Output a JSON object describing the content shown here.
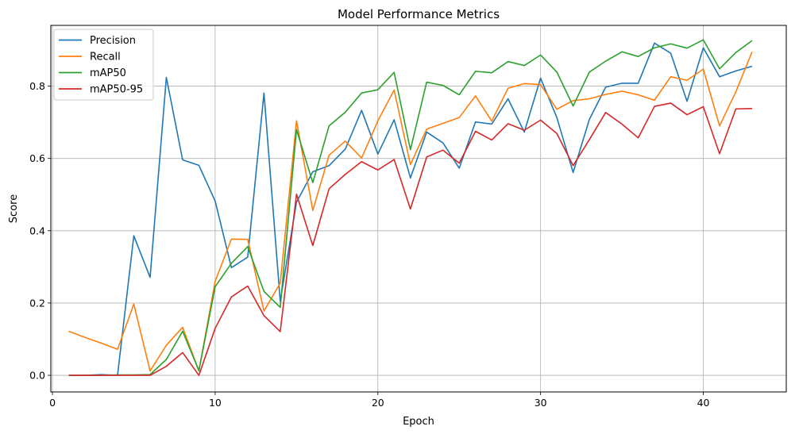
{
  "chart_data": {
    "type": "line",
    "title": "Model Performance Metrics",
    "xlabel": "Epoch",
    "ylabel": "Score",
    "xlim": [
      -0.1,
      45.1
    ],
    "ylim": [
      -0.046,
      0.968
    ],
    "xticks": [
      0,
      10,
      20,
      30,
      40
    ],
    "yticks": [
      0.0,
      0.2,
      0.4,
      0.6,
      0.8
    ],
    "grid": true,
    "legend_position": "top-left",
    "x": [
      1,
      2,
      3,
      4,
      5,
      6,
      7,
      8,
      9,
      10,
      11,
      12,
      13,
      14,
      15,
      16,
      17,
      18,
      19,
      20,
      21,
      22,
      23,
      24,
      25,
      26,
      27,
      28,
      29,
      30,
      31,
      32,
      33,
      34,
      35,
      36,
      37,
      38,
      39,
      40,
      41,
      42,
      43
    ],
    "series": [
      {
        "name": "Precision",
        "color": "#1f77b4",
        "values": [
          0.0,
          0.0,
          0.002,
          0.0,
          0.386,
          0.271,
          0.824,
          0.596,
          0.581,
          0.482,
          0.298,
          0.327,
          0.781,
          0.205,
          0.479,
          0.563,
          0.58,
          0.626,
          0.733,
          0.612,
          0.707,
          0.546,
          0.673,
          0.643,
          0.573,
          0.701,
          0.695,
          0.765,
          0.673,
          0.822,
          0.713,
          0.561,
          0.708,
          0.797,
          0.808,
          0.808,
          0.919,
          0.891,
          0.758,
          0.906,
          0.826,
          0.842,
          0.855
        ]
      },
      {
        "name": "Recall",
        "color": "#ff7f0e",
        "values": [
          0.122,
          0.105,
          0.089,
          0.072,
          0.197,
          0.012,
          0.083,
          0.133,
          0.012,
          0.26,
          0.377,
          0.376,
          0.178,
          0.255,
          0.704,
          0.456,
          0.609,
          0.648,
          0.601,
          0.704,
          0.789,
          0.583,
          0.681,
          0.697,
          0.713,
          0.773,
          0.703,
          0.794,
          0.807,
          0.804,
          0.736,
          0.76,
          0.765,
          0.777,
          0.786,
          0.776,
          0.761,
          0.826,
          0.816,
          0.847,
          0.69,
          0.784,
          0.895
        ]
      },
      {
        "name": "mAP50",
        "color": "#2ca02c",
        "values": [
          0.0,
          0.0,
          0.0,
          0.001,
          0.001,
          0.002,
          0.044,
          0.122,
          0.013,
          0.245,
          0.31,
          0.356,
          0.232,
          0.188,
          0.68,
          0.533,
          0.69,
          0.728,
          0.781,
          0.79,
          0.838,
          0.624,
          0.811,
          0.802,
          0.776,
          0.841,
          0.837,
          0.868,
          0.857,
          0.886,
          0.839,
          0.745,
          0.839,
          0.869,
          0.895,
          0.882,
          0.906,
          0.917,
          0.905,
          0.928,
          0.848,
          0.893,
          0.926
        ]
      },
      {
        "name": "mAP50-95",
        "color": "#d62728",
        "values": [
          0.0,
          0.0,
          0.0,
          0.0,
          0.0,
          0.0,
          0.025,
          0.063,
          0.0,
          0.13,
          0.217,
          0.247,
          0.165,
          0.121,
          0.501,
          0.359,
          0.516,
          0.556,
          0.591,
          0.568,
          0.597,
          0.46,
          0.604,
          0.623,
          0.587,
          0.675,
          0.651,
          0.696,
          0.678,
          0.706,
          0.669,
          0.58,
          0.652,
          0.727,
          0.695,
          0.657,
          0.744,
          0.753,
          0.721,
          0.743,
          0.613,
          0.737,
          0.738
        ]
      }
    ]
  }
}
